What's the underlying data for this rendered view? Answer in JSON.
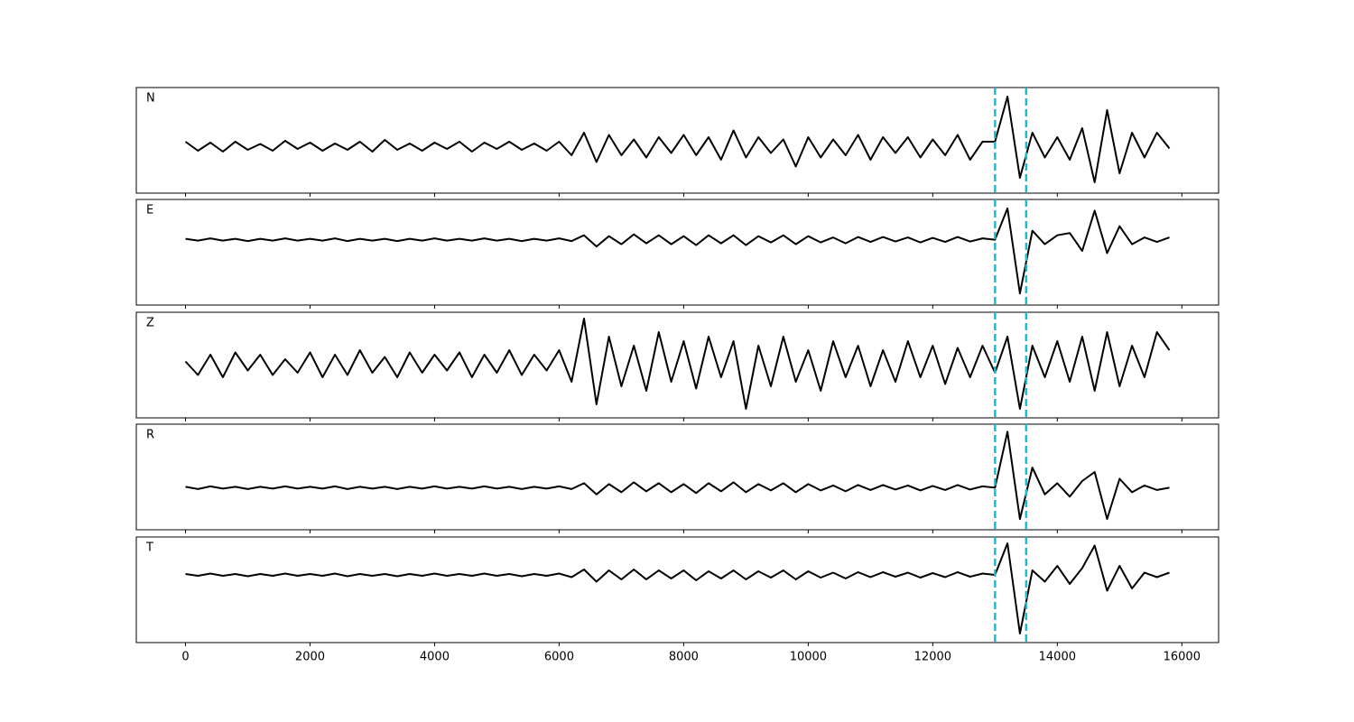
{
  "chart_data": {
    "type": "line",
    "subplots": true,
    "xlim": [
      -790,
      16590
    ],
    "xticks": [
      0,
      2000,
      4000,
      6000,
      8000,
      10000,
      12000,
      14000,
      16000
    ],
    "x": [
      0,
      200,
      400,
      600,
      800,
      1000,
      1200,
      1400,
      1600,
      1800,
      2000,
      2200,
      2400,
      2600,
      2800,
      3000,
      3200,
      3400,
      3600,
      3800,
      4000,
      4200,
      4400,
      4600,
      4800,
      5000,
      5200,
      5400,
      5600,
      5800,
      6000,
      6200,
      6400,
      6600,
      6800,
      7000,
      7200,
      7400,
      7600,
      7800,
      8000,
      8200,
      8400,
      8600,
      8800,
      9000,
      9200,
      9400,
      9600,
      9800,
      10000,
      10200,
      10400,
      10600,
      10800,
      11000,
      11200,
      11400,
      11600,
      11800,
      12000,
      12200,
      12400,
      12600,
      12800,
      13000,
      13200,
      13400,
      13600,
      13800,
      14000,
      14200,
      14400,
      14600,
      14800,
      15000,
      15200,
      15400,
      15600,
      15800
    ],
    "vlines": [
      13000,
      13500
    ],
    "vline_color": "#17becf",
    "line_color": "#000000",
    "series": [
      {
        "name": "N",
        "ylim": [
          -1.04,
          1.3
        ],
        "values": [
          0.1,
          -0.1,
          0.08,
          -0.12,
          0.1,
          -0.08,
          0.05,
          -0.1,
          0.12,
          -0.06,
          0.08,
          -0.1,
          0.06,
          -0.08,
          0.1,
          -0.12,
          0.14,
          -0.08,
          0.06,
          -0.1,
          0.08,
          -0.06,
          0.1,
          -0.12,
          0.08,
          -0.06,
          0.1,
          -0.08,
          0.06,
          -0.1,
          0.1,
          -0.2,
          0.3,
          -0.35,
          0.25,
          -0.2,
          0.15,
          -0.25,
          0.2,
          -0.15,
          0.25,
          -0.2,
          0.2,
          -0.3,
          0.35,
          -0.25,
          0.2,
          -0.15,
          0.15,
          -0.45,
          0.2,
          -0.25,
          0.15,
          -0.2,
          0.25,
          -0.3,
          0.2,
          -0.15,
          0.2,
          -0.25,
          0.15,
          -0.2,
          0.25,
          -0.3,
          0.1,
          0.1,
          1.1,
          -0.7,
          0.3,
          -0.25,
          0.2,
          -0.3,
          0.4,
          -0.8,
          0.8,
          -0.6,
          0.3,
          -0.25,
          0.3,
          -0.05
        ]
      },
      {
        "name": "E",
        "ylim": [
          -1.46,
          0.9
        ],
        "values": [
          0.02,
          -0.02,
          0.03,
          -0.02,
          0.02,
          -0.03,
          0.02,
          -0.02,
          0.03,
          -0.02,
          0.02,
          -0.02,
          0.03,
          -0.03,
          0.02,
          -0.02,
          0.02,
          -0.03,
          0.02,
          -0.02,
          0.03,
          -0.02,
          0.02,
          -0.02,
          0.03,
          -0.02,
          0.02,
          -0.03,
          0.02,
          -0.02,
          0.03,
          -0.03,
          0.1,
          -0.15,
          0.08,
          -0.1,
          0.12,
          -0.08,
          0.1,
          -0.1,
          0.08,
          -0.12,
          0.1,
          -0.08,
          0.1,
          -0.12,
          0.08,
          -0.06,
          0.1,
          -0.1,
          0.08,
          -0.06,
          0.05,
          -0.08,
          0.06,
          -0.05,
          0.06,
          -0.04,
          0.05,
          -0.06,
          0.04,
          -0.05,
          0.06,
          -0.04,
          0.03,
          0.0,
          0.7,
          -1.2,
          0.2,
          -0.1,
          0.1,
          0.15,
          -0.25,
          0.65,
          -0.3,
          0.3,
          -0.1,
          0.05,
          -0.05,
          0.05
        ]
      },
      {
        "name": "Z",
        "ylim": [
          -1.2,
          1.14
        ],
        "values": [
          0.05,
          -0.25,
          0.2,
          -0.3,
          0.25,
          -0.15,
          0.2,
          -0.25,
          0.1,
          -0.2,
          0.25,
          -0.3,
          0.2,
          -0.25,
          0.3,
          -0.2,
          0.15,
          -0.3,
          0.25,
          -0.2,
          0.2,
          -0.15,
          0.25,
          -0.3,
          0.2,
          -0.2,
          0.3,
          -0.25,
          0.2,
          -0.15,
          0.3,
          -0.4,
          1.0,
          -0.9,
          0.6,
          -0.5,
          0.4,
          -0.6,
          0.7,
          -0.4,
          0.5,
          -0.55,
          0.6,
          -0.3,
          0.5,
          -1.0,
          0.4,
          -0.5,
          0.6,
          -0.4,
          0.3,
          -0.6,
          0.5,
          -0.3,
          0.4,
          -0.5,
          0.3,
          -0.4,
          0.5,
          -0.3,
          0.4,
          -0.45,
          0.35,
          -0.3,
          0.4,
          -0.2,
          0.6,
          -1.0,
          0.4,
          -0.3,
          0.5,
          -0.4,
          0.6,
          -0.6,
          0.7,
          -0.5,
          0.4,
          -0.3,
          0.7,
          0.3
        ]
      },
      {
        "name": "R",
        "ylim": [
          -0.94,
          1.42
        ],
        "values": [
          0.02,
          -0.03,
          0.03,
          -0.02,
          0.02,
          -0.03,
          0.02,
          -0.02,
          0.03,
          -0.02,
          0.02,
          -0.02,
          0.03,
          -0.03,
          0.02,
          -0.02,
          0.02,
          -0.03,
          0.02,
          -0.02,
          0.03,
          -0.02,
          0.02,
          -0.02,
          0.03,
          -0.02,
          0.02,
          -0.03,
          0.02,
          -0.02,
          0.03,
          -0.03,
          0.1,
          -0.15,
          0.08,
          -0.1,
          0.12,
          -0.08,
          0.1,
          -0.1,
          0.08,
          -0.12,
          0.1,
          -0.08,
          0.12,
          -0.1,
          0.08,
          -0.06,
          0.1,
          -0.1,
          0.08,
          -0.06,
          0.05,
          -0.08,
          0.06,
          -0.05,
          0.06,
          -0.04,
          0.05,
          -0.06,
          0.04,
          -0.05,
          0.06,
          -0.04,
          0.03,
          0.0,
          1.25,
          -0.7,
          0.45,
          -0.15,
          0.1,
          -0.2,
          0.15,
          0.35,
          -0.7,
          0.2,
          -0.1,
          0.05,
          -0.05,
          0.0
        ]
      },
      {
        "name": "T",
        "ylim": [
          -1.5,
          0.84
        ],
        "values": [
          0.02,
          -0.02,
          0.03,
          -0.02,
          0.02,
          -0.03,
          0.02,
          -0.02,
          0.03,
          -0.02,
          0.02,
          -0.02,
          0.03,
          -0.03,
          0.02,
          -0.02,
          0.02,
          -0.03,
          0.02,
          -0.02,
          0.03,
          -0.02,
          0.02,
          -0.02,
          0.03,
          -0.02,
          0.02,
          -0.03,
          0.02,
          -0.02,
          0.03,
          -0.05,
          0.12,
          -0.15,
          0.1,
          -0.1,
          0.12,
          -0.1,
          0.1,
          -0.08,
          0.1,
          -0.12,
          0.08,
          -0.08,
          0.1,
          -0.1,
          0.08,
          -0.06,
          0.1,
          -0.1,
          0.08,
          -0.06,
          0.05,
          -0.08,
          0.06,
          -0.05,
          0.06,
          -0.04,
          0.05,
          -0.06,
          0.04,
          -0.05,
          0.06,
          -0.04,
          0.03,
          0.0,
          0.7,
          -1.3,
          0.1,
          -0.15,
          0.2,
          -0.2,
          0.15,
          0.65,
          -0.35,
          0.2,
          -0.3,
          0.05,
          -0.05,
          0.05
        ]
      }
    ]
  }
}
